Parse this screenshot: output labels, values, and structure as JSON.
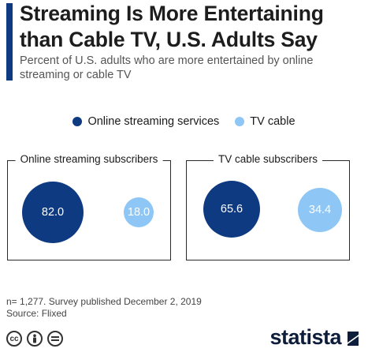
{
  "header": {
    "title": "Streaming Is More Entertaining than Cable TV, U.S. Adults Say",
    "subtitle": "Percent of U.S. adults who are more entertained by online streaming or cable TV"
  },
  "colors": {
    "accent": "#0e3a82",
    "streaming": "#0e3a82",
    "cable": "#8ec6f5"
  },
  "chart_data": {
    "type": "bubble",
    "unit": "%",
    "series": [
      {
        "name": "Online streaming services",
        "color": "#0e3a82"
      },
      {
        "name": "TV cable",
        "color": "#8ec6f5"
      }
    ],
    "groups": [
      {
        "label": "Online streaming subscribers",
        "values": [
          82.0,
          18.0
        ],
        "display": [
          "82.0",
          "18.0"
        ]
      },
      {
        "label": "TV cable subscribers",
        "values": [
          65.6,
          34.4
        ],
        "display": [
          "65.6",
          "34.4"
        ]
      }
    ],
    "legend_position": "top-center"
  },
  "footer": {
    "note": "n= 1,277. Survey published December 2, 2019",
    "source": "Source: Flixed"
  },
  "brand": {
    "name": "statista"
  },
  "icons": [
    "cc-icon",
    "person-icon",
    "equals-icon"
  ]
}
